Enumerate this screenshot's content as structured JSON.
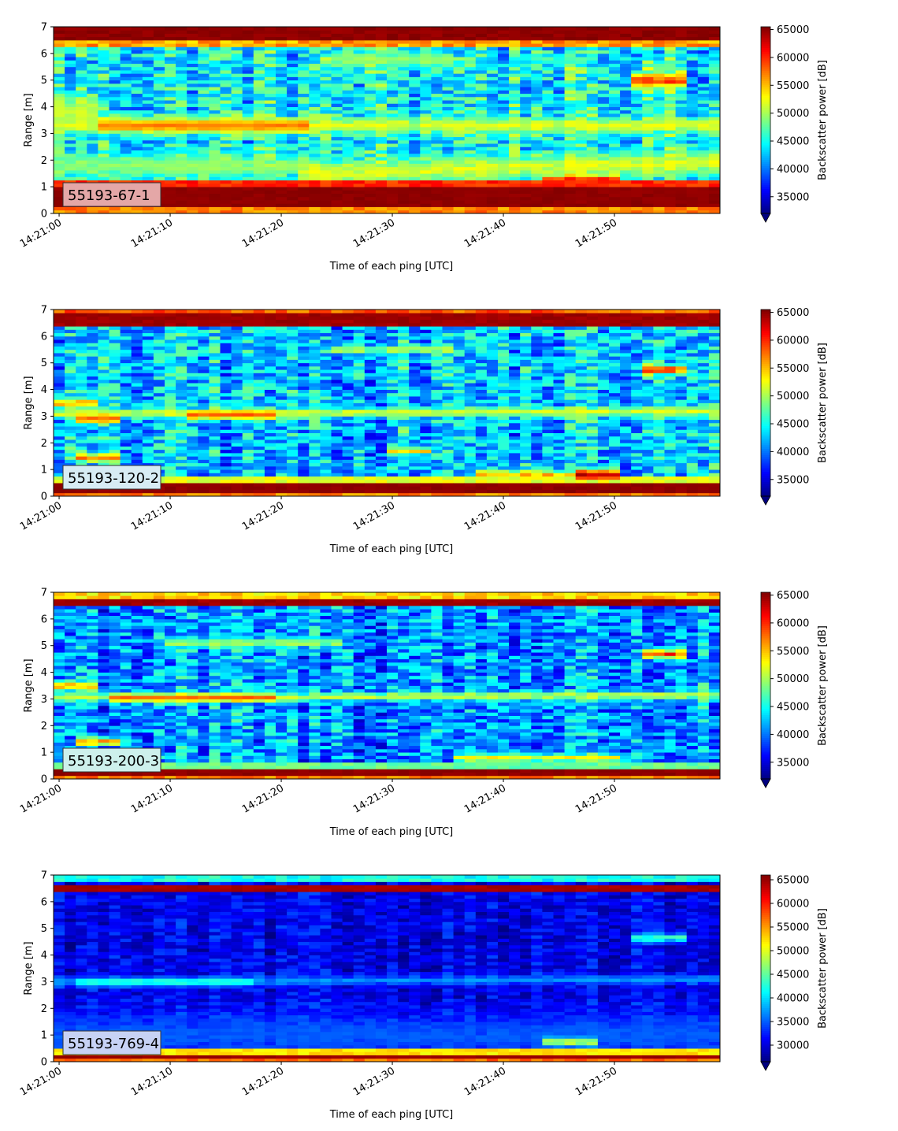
{
  "colors": {
    "jet": "jet colormap",
    "label_box_border": "#333333",
    "axis": "#000000"
  },
  "chart_data": [
    {
      "type": "heatmap",
      "panel_label": "55193-67-1",
      "label_box_color": "#e4a7a7",
      "xlabel": "Time of each ping [UTC]",
      "ylabel": "Range [m]",
      "x_ticks": [
        "14:21:00",
        "14:21:10",
        "14:21:20",
        "14:21:30",
        "14:21:40",
        "14:21:50"
      ],
      "y_ticks": [
        "0",
        "1",
        "2",
        "3",
        "4",
        "5",
        "6",
        "7"
      ],
      "xlim_seconds": [
        -0.5,
        59.5
      ],
      "ylim": [
        0,
        7
      ],
      "colorbar": {
        "label": "Backscatter power [dB]",
        "min": 32000,
        "max": 65500,
        "ticks": [
          "35000",
          "40000",
          "45000",
          "50000",
          "55000",
          "60000",
          "65000"
        ],
        "tick_values": [
          35000,
          40000,
          45000,
          50000,
          55000,
          60000,
          65000
        ]
      },
      "features": {
        "bg": 44500,
        "noise": 6000,
        "near_band": {
          "from": 0.25,
          "to": 1.05,
          "value": 65000
        },
        "near_edge": {
          "at": 1.15,
          "value": 60000
        },
        "top_band": {
          "from": 6.45,
          "to": 7.0,
          "value": 65000
        },
        "top_edge": {
          "at": 6.35,
          "value": 56000
        },
        "layers": [
          {
            "t0": 0,
            "t1": 60,
            "r0": 3.3,
            "r1": 3.3,
            "w": 0.2,
            "v": 53000
          },
          {
            "t0": 4,
            "t1": 22,
            "r0": 3.3,
            "r1": 3.3,
            "w": 0.15,
            "v": 58000
          },
          {
            "t0": 22,
            "t1": 60,
            "r0": 1.5,
            "r1": 1.95,
            "w": 0.3,
            "v": 53000
          },
          {
            "t0": 0,
            "t1": 22,
            "r0": 1.8,
            "r1": 1.8,
            "w": 0.3,
            "v": 50000
          },
          {
            "t0": 52,
            "t1": 56,
            "r0": 5.0,
            "r1": 5.0,
            "w": 0.2,
            "v": 61000
          },
          {
            "t0": 25,
            "t1": 35,
            "r0": 5.8,
            "r1": 5.8,
            "w": 0.2,
            "v": 50000
          },
          {
            "t0": 0,
            "t1": 3,
            "r0": 3.9,
            "r1": 3.9,
            "w": 0.4,
            "v": 52000
          },
          {
            "t0": 44,
            "t1": 50,
            "r0": 1.25,
            "r1": 1.25,
            "w": 0.12,
            "v": 63000
          }
        ]
      }
    },
    {
      "type": "heatmap",
      "panel_label": "55193-120-2",
      "label_box_color": "#d7ecf4",
      "xlabel": "Time of each ping [UTC]",
      "ylabel": "Range [m]",
      "x_ticks": [
        "14:21:00",
        "14:21:10",
        "14:21:20",
        "14:21:30",
        "14:21:40",
        "14:21:50"
      ],
      "y_ticks": [
        "0",
        "1",
        "2",
        "3",
        "4",
        "5",
        "6",
        "7"
      ],
      "xlim_seconds": [
        -0.5,
        59.5
      ],
      "ylim": [
        0,
        7
      ],
      "colorbar": {
        "label": "Backscatter power [dB]",
        "min": 32000,
        "max": 65500,
        "ticks": [
          "35000",
          "40000",
          "45000",
          "50000",
          "55000",
          "60000",
          "65000"
        ],
        "tick_values": [
          35000,
          40000,
          45000,
          50000,
          55000,
          60000,
          65000
        ]
      },
      "features": {
        "bg": 42500,
        "noise": 6000,
        "near_band": {
          "from": 0.1,
          "to": 0.45,
          "value": 65000
        },
        "near_edge": {
          "at": 0.6,
          "value": 52000
        },
        "top_band": {
          "from": 6.4,
          "to": 6.85,
          "value": 64500
        },
        "top_edge": {
          "at": 6.95,
          "value": 58000
        },
        "layers": [
          {
            "t0": 0,
            "t1": 60,
            "r0": 3.1,
            "r1": 3.2,
            "w": 0.12,
            "v": 53000
          },
          {
            "t0": 12,
            "t1": 19,
            "r0": 3.05,
            "r1": 3.05,
            "w": 0.1,
            "v": 60000
          },
          {
            "t0": 2,
            "t1": 5,
            "r0": 2.9,
            "r1": 2.9,
            "w": 0.1,
            "v": 60000
          },
          {
            "t0": 0,
            "t1": 3,
            "r0": 3.5,
            "r1": 3.5,
            "w": 0.12,
            "v": 58000
          },
          {
            "t0": 2,
            "t1": 5,
            "r0": 1.45,
            "r1": 1.45,
            "w": 0.1,
            "v": 60000
          },
          {
            "t0": 38,
            "t1": 50,
            "r0": 0.85,
            "r1": 0.8,
            "w": 0.1,
            "v": 57000
          },
          {
            "t0": 47,
            "t1": 50,
            "r0": 0.8,
            "r1": 0.8,
            "w": 0.12,
            "v": 65000
          },
          {
            "t0": 53,
            "t1": 56,
            "r0": 4.75,
            "r1": 4.75,
            "w": 0.12,
            "v": 62000
          },
          {
            "t0": 25,
            "t1": 35,
            "r0": 5.5,
            "r1": 5.5,
            "w": 0.1,
            "v": 52000
          },
          {
            "t0": 30,
            "t1": 33,
            "r0": 1.7,
            "r1": 1.7,
            "w": 0.1,
            "v": 56000
          }
        ]
      }
    },
    {
      "type": "heatmap",
      "panel_label": "55193-200-3",
      "label_box_color": "#cdf0ec",
      "xlabel": "Time of each ping [UTC]",
      "ylabel": "Range [m]",
      "x_ticks": [
        "14:21:00",
        "14:21:10",
        "14:21:20",
        "14:21:30",
        "14:21:40",
        "14:21:50"
      ],
      "y_ticks": [
        "0",
        "1",
        "2",
        "3",
        "4",
        "5",
        "6",
        "7"
      ],
      "xlim_seconds": [
        -0.5,
        59.5
      ],
      "ylim": [
        0,
        7
      ],
      "colorbar": {
        "label": "Backscatter power [dB]",
        "min": 32000,
        "max": 65500,
        "ticks": [
          "35000",
          "40000",
          "45000",
          "50000",
          "55000",
          "60000",
          "65000"
        ],
        "tick_values": [
          35000,
          40000,
          45000,
          50000,
          55000,
          60000,
          65000
        ]
      },
      "features": {
        "bg": 41000,
        "noise": 6000,
        "near_band": {
          "from": 0.1,
          "to": 0.35,
          "value": 65000
        },
        "near_edge": {
          "at": 0.5,
          "value": 48000
        },
        "top_band": {
          "from": 6.45,
          "to": 6.75,
          "value": 64500
        },
        "top_edge": {
          "at": 6.9,
          "value": 54000
        },
        "layers": [
          {
            "t0": 0,
            "t1": 60,
            "r0": 3.05,
            "r1": 3.15,
            "w": 0.1,
            "v": 53000
          },
          {
            "t0": 5,
            "t1": 19,
            "r0": 3.05,
            "r1": 3.05,
            "w": 0.1,
            "v": 59000
          },
          {
            "t0": 0,
            "t1": 3,
            "r0": 3.5,
            "r1": 3.5,
            "w": 0.12,
            "v": 58000
          },
          {
            "t0": 2,
            "t1": 5,
            "r0": 1.4,
            "r1": 1.4,
            "w": 0.1,
            "v": 59000
          },
          {
            "t0": 53,
            "t1": 56,
            "r0": 4.7,
            "r1": 4.7,
            "w": 0.12,
            "v": 62000
          },
          {
            "t0": 10,
            "t1": 25,
            "r0": 5.1,
            "r1": 5.1,
            "w": 0.12,
            "v": 51000
          },
          {
            "t0": 36,
            "t1": 50,
            "r0": 0.8,
            "r1": 0.8,
            "w": 0.1,
            "v": 55000
          }
        ]
      }
    },
    {
      "type": "heatmap",
      "panel_label": "55193-769-4",
      "label_box_color": "#c7d2f5",
      "xlabel": "Time of each ping [UTC]",
      "ylabel": "Range [m]",
      "x_ticks": [
        "14:21:00",
        "14:21:10",
        "14:21:20",
        "14:21:30",
        "14:21:40",
        "14:21:50"
      ],
      "y_ticks": [
        "0",
        "1",
        "2",
        "3",
        "4",
        "5",
        "6",
        "7"
      ],
      "xlim_seconds": [
        -0.5,
        59.5
      ],
      "ylim": [
        0,
        7
      ],
      "colorbar": {
        "label": "Backscatter power [dB]",
        "min": 26500,
        "max": 66000,
        "ticks": [
          "30000",
          "35000",
          "40000",
          "45000",
          "50000",
          "55000",
          "60000",
          "65000"
        ],
        "tick_values": [
          30000,
          35000,
          40000,
          45000,
          50000,
          55000,
          60000,
          65000
        ]
      },
      "features": {
        "bg": 30500,
        "noise": 3500,
        "near_band": {
          "from": 0.15,
          "to": 0.28,
          "value": 65000
        },
        "near_edge": {
          "at": 0.35,
          "value": 52000
        },
        "top_band": {
          "from": 6.4,
          "to": 6.6,
          "value": 64500
        },
        "top_edge": {
          "at": 6.85,
          "value": 42000
        },
        "layers": [
          {
            "t0": 0,
            "t1": 60,
            "r0": 3.0,
            "r1": 3.1,
            "w": 0.12,
            "v": 38000
          },
          {
            "t0": 2,
            "t1": 17,
            "r0": 3.0,
            "r1": 3.0,
            "w": 0.1,
            "v": 44000
          },
          {
            "t0": 0,
            "t1": 60,
            "r0": 1.0,
            "r1": 1.0,
            "w": 0.6,
            "v": 35500
          },
          {
            "t0": 44,
            "t1": 48,
            "r0": 0.75,
            "r1": 0.75,
            "w": 0.1,
            "v": 52000
          },
          {
            "t0": 52,
            "t1": 56,
            "r0": 4.65,
            "r1": 4.65,
            "w": 0.12,
            "v": 45000
          }
        ]
      }
    }
  ]
}
